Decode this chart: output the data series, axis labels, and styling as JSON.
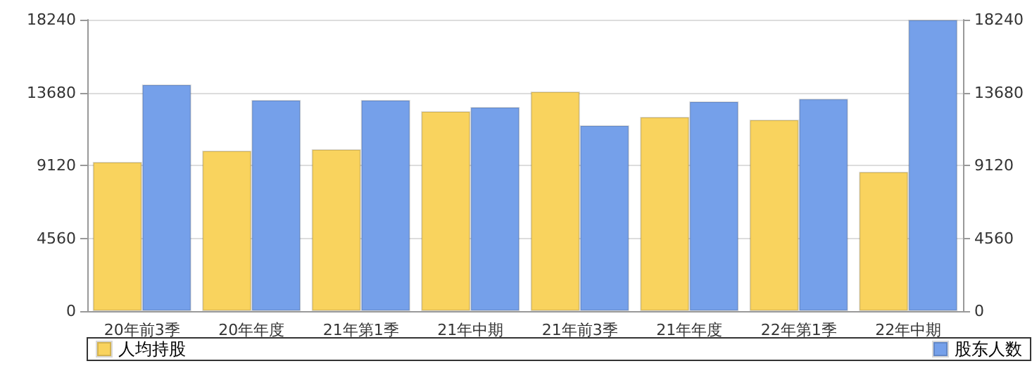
{
  "chart_data": {
    "type": "bar",
    "categories": [
      "20年前3季",
      "20年年度",
      "21年第1季",
      "21年中期",
      "21年前3季",
      "21年年度",
      "22年第1季",
      "22年中期"
    ],
    "series": [
      {
        "name": "人均持股",
        "color": "#f9d35e",
        "values": [
          9340,
          10050,
          10130,
          12510,
          13750,
          12160,
          11980,
          8720
        ]
      },
      {
        "name": "股东人数",
        "color": "#75a0ea",
        "values": [
          14190,
          13220,
          13220,
          12780,
          11630,
          13130,
          13300,
          18240
        ]
      }
    ],
    "ylim": [
      0,
      18240
    ],
    "yticks": [
      0,
      4560,
      9120,
      13680,
      18240
    ],
    "y2lim": [
      0,
      18240
    ],
    "y2ticks": [
      0,
      4560,
      9120,
      13680,
      18240
    ],
    "grid": "y",
    "legend": "bottom left"
  }
}
